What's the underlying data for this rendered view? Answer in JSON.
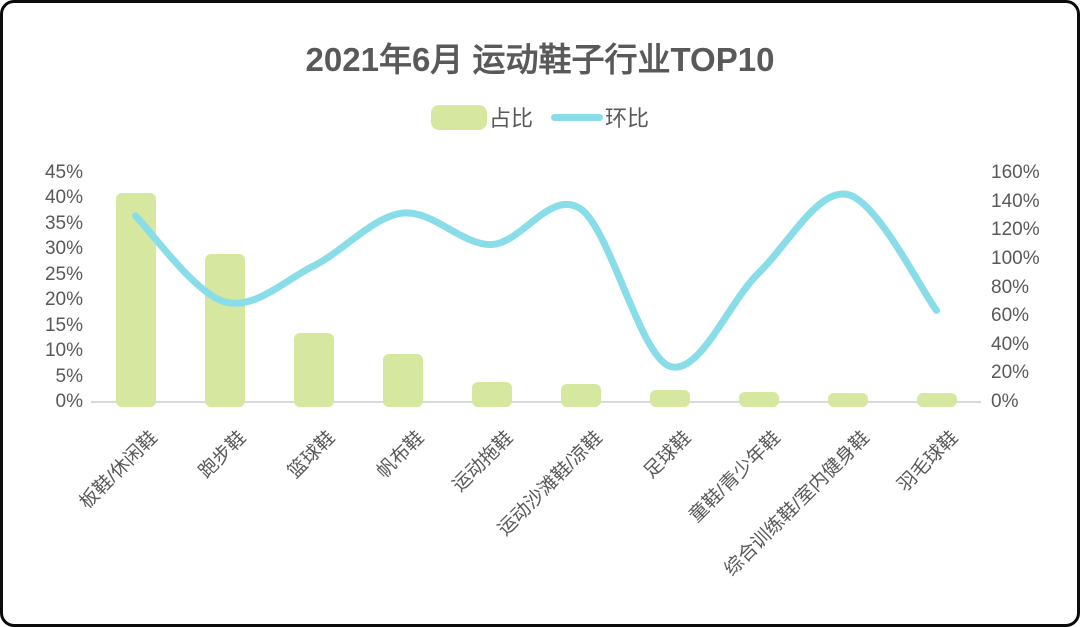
{
  "chart_data": {
    "type": "combo-bar-line",
    "title": "2021年6月 运动鞋子行业TOP10",
    "categories": [
      "板鞋/休闲鞋",
      "跑步鞋",
      "篮球鞋",
      "帆布鞋",
      "运动拖鞋",
      "运动沙滩鞋/凉鞋",
      "足球鞋",
      "童鞋/青少年鞋",
      "综合训练鞋/室内健身鞋",
      "羽毛球鞋"
    ],
    "series": [
      {
        "name": "占比",
        "type": "bar",
        "axis": "left",
        "unit": "%",
        "values": [
          41,
          29,
          13.5,
          9.5,
          4,
          3.5,
          2.4,
          2,
          1.8,
          1.8
        ]
      },
      {
        "name": "环比",
        "type": "line",
        "axis": "right",
        "unit": "%",
        "values": [
          130,
          70,
          95,
          132,
          110,
          135,
          25,
          90,
          145,
          64
        ]
      }
    ],
    "left_axis": {
      "min": 0,
      "max": 45,
      "step": 5,
      "tick_labels": [
        "45%",
        "40%",
        "35%",
        "30%",
        "25%",
        "20%",
        "15%",
        "10%",
        "5%",
        "0%"
      ]
    },
    "right_axis": {
      "min": 0,
      "max": 160,
      "step": 20,
      "tick_labels": [
        "160%",
        "140%",
        "120%",
        "100%",
        "80%",
        "60%",
        "40%",
        "20%",
        "0%"
      ]
    },
    "grid": false,
    "legend_position": "top"
  },
  "colors": {
    "bar": "#d6e7a0",
    "line": "#89dde8",
    "text": "#595959",
    "axis_line": "#d9d9d9",
    "card_border": "#0b0b0b",
    "background": "#ffffff"
  }
}
